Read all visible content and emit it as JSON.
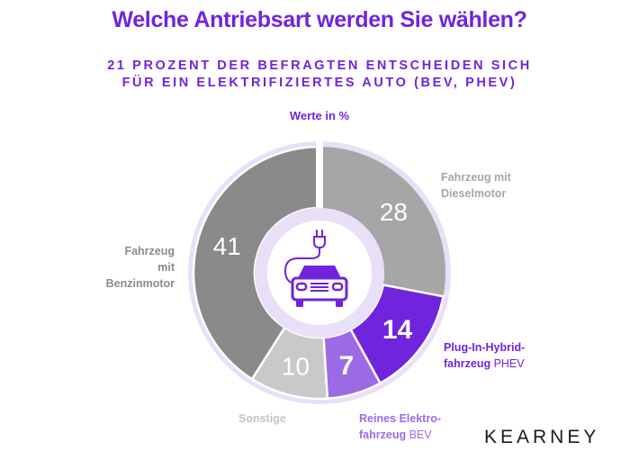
{
  "title": "Welche Antriebsart werden Sie wählen?",
  "subtitle_lines": [
    "21 PROZENT DER BEFRAGTEN ENTSCHEIDEN SICH",
    "FÜR EIN ELEKTRIFIZIERTES AUTO (BEV, PHEV)"
  ],
  "unit_note": "Werte in %",
  "brand": "KEARNEY",
  "center_icon": "electric-car-plug-icon",
  "chart_data": {
    "type": "pie",
    "variant": "donut",
    "start": "top",
    "direction": "clockwise",
    "slices": [
      {
        "key": "diesel",
        "value": 28,
        "label_bold": [
          "Fahrzeug mit",
          "Dieselmotor"
        ],
        "label_regular": "",
        "color": "#a6a6a6",
        "label_color": "#a6a6a6",
        "text_color": "#ffffff",
        "bold_value": false
      },
      {
        "key": "phev",
        "value": 14,
        "label_bold": [
          "Plug-In-Hybrid-",
          "fahrzeug"
        ],
        "label_regular": "PHEV",
        "color": "#7024dc",
        "label_color": "#7024dc",
        "text_color": "#ffffff",
        "bold_value": true
      },
      {
        "key": "bev",
        "value": 7,
        "label_bold": [
          "Reines Elektro-",
          "fahrzeug"
        ],
        "label_regular": "BEV",
        "color": "#9d6ae6",
        "label_color": "#9d6ae6",
        "text_color": "#ffffff",
        "bold_value": true
      },
      {
        "key": "sonstige",
        "value": 10,
        "label_bold": [
          "Sonstige"
        ],
        "label_regular": "",
        "color": "#c9c9c9",
        "label_color": "#c4c4c4",
        "text_color": "#ffffff",
        "bold_value": false
      },
      {
        "key": "benzin",
        "value": 41,
        "label_bold": [
          "Fahrzeug",
          "mit Benzinmotor"
        ],
        "label_regular": "",
        "color": "#8a8a8a",
        "label_color": "#8a8a8a",
        "text_color": "#ffffff",
        "bold_value": false
      }
    ],
    "ring_color": "#e8e0f7",
    "accent": "#7024dc"
  }
}
